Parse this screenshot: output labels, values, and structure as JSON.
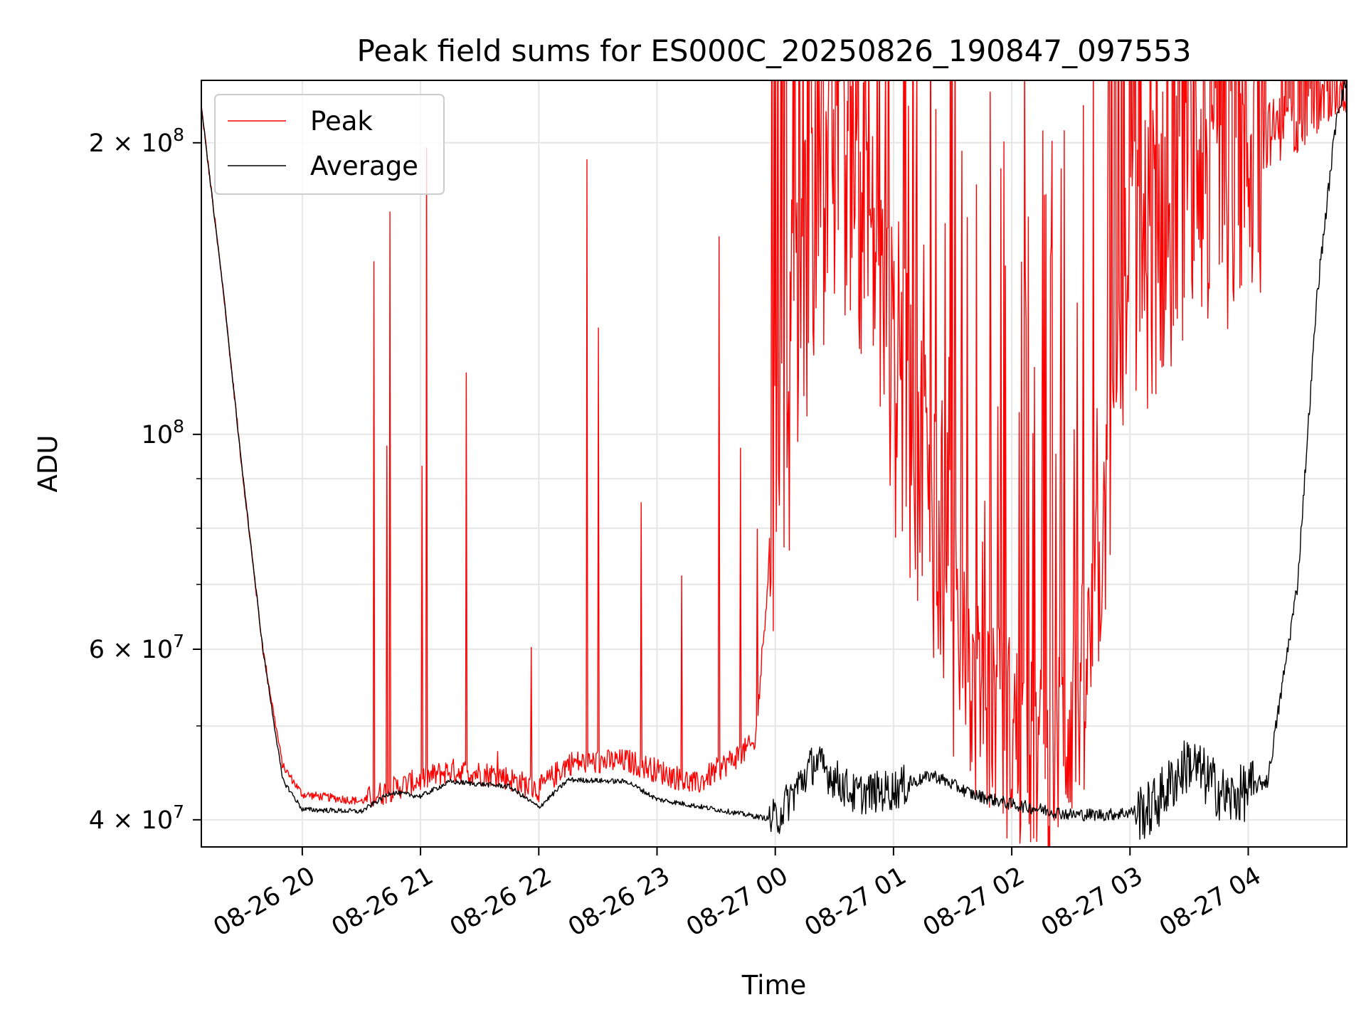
{
  "chart_data": {
    "type": "line",
    "title": "Peak field sums for ES000C_20250826_190847_097553",
    "xlabel": "Time",
    "ylabel": "ADU",
    "yscale": "log",
    "grid": true,
    "legend_position": "top-left",
    "xlim": [
      "2025-08-26 19:08:47",
      "2025-08-27 04:50:00"
    ],
    "ylim": [
      37500000,
      232000000
    ],
    "x_ticks": [
      {
        "value": "2025-08-26 20:00",
        "label": "08-26 20"
      },
      {
        "value": "2025-08-26 21:00",
        "label": "08-26 21"
      },
      {
        "value": "2025-08-26 22:00",
        "label": "08-26 22"
      },
      {
        "value": "2025-08-26 23:00",
        "label": "08-26 23"
      },
      {
        "value": "2025-08-27 00:00",
        "label": "08-27 00"
      },
      {
        "value": "2025-08-27 01:00",
        "label": "08-27 01"
      },
      {
        "value": "2025-08-27 02:00",
        "label": "08-27 02"
      },
      {
        "value": "2025-08-27 03:00",
        "label": "08-27 03"
      },
      {
        "value": "2025-08-27 04:00",
        "label": "08-27 04"
      }
    ],
    "y_ticks": [
      {
        "value": 40000000,
        "mantissa": "4",
        "exponent": "7"
      },
      {
        "value": 60000000,
        "mantissa": "6",
        "exponent": "7"
      },
      {
        "value": 100000000,
        "mantissa": "",
        "exponent": "8"
      },
      {
        "value": 200000000,
        "mantissa": "2",
        "exponent": "8"
      }
    ],
    "y_tick_base": "10",
    "y_tick_times": "×",
    "y_minor_ticks": [
      50000000,
      70000000,
      80000000,
      90000000
    ],
    "series": [
      {
        "name": "Peak",
        "color": "#ff0000",
        "points": [
          [
            "2025-08-26 19:08:47",
            218000000
          ],
          [
            "2025-08-26 19:20",
            140000000
          ],
          [
            "2025-08-26 19:30",
            90000000
          ],
          [
            "2025-08-26 19:40",
            60000000
          ],
          [
            "2025-08-26 19:50",
            45500000
          ],
          [
            "2025-08-26 20:00",
            42500000
          ],
          [
            "2025-08-26 20:30",
            41800000
          ],
          [
            "2025-08-26 20:45",
            43000000
          ],
          [
            "2025-08-26 21:00",
            44000000
          ],
          [
            "2025-08-26 21:15",
            45000000
          ],
          [
            "2025-08-26 21:40",
            44500000
          ],
          [
            "2025-08-26 22:00",
            43000000
          ],
          [
            "2025-08-26 22:15",
            45800000
          ],
          [
            "2025-08-26 22:45",
            46000000
          ],
          [
            "2025-08-26 23:00",
            45000000
          ],
          [
            "2025-08-26 23:20",
            43500000
          ],
          [
            "2025-08-26 23:50",
            48000000
          ],
          [
            "2025-08-27 00:00",
            90000000
          ],
          [
            "2025-08-27 00:20",
            180000000
          ],
          [
            "2025-08-27 00:40",
            200000000
          ],
          [
            "2025-08-27 01:00",
            120000000
          ],
          [
            "2025-08-27 01:20",
            90000000
          ],
          [
            "2025-08-27 01:40",
            55000000
          ],
          [
            "2025-08-27 02:00",
            50000000
          ],
          [
            "2025-08-27 02:20",
            45000000
          ],
          [
            "2025-08-27 02:40",
            60000000
          ],
          [
            "2025-08-27 03:00",
            150000000
          ],
          [
            "2025-08-27 03:30",
            190000000
          ],
          [
            "2025-08-27 04:00",
            200000000
          ],
          [
            "2025-08-27 04:30",
            215000000
          ],
          [
            "2025-08-27 04:50",
            232000000
          ]
        ]
      },
      {
        "name": "Average",
        "color": "#000000",
        "points": [
          [
            "2025-08-26 19:08:47",
            218000000
          ],
          [
            "2025-08-26 19:20",
            140000000
          ],
          [
            "2025-08-26 19:30",
            90000000
          ],
          [
            "2025-08-26 19:40",
            60000000
          ],
          [
            "2025-08-26 19:50",
            44000000
          ],
          [
            "2025-08-26 20:00",
            41000000
          ],
          [
            "2025-08-26 20:30",
            40800000
          ],
          [
            "2025-08-26 20:45",
            42700000
          ],
          [
            "2025-08-26 21:00",
            42300000
          ],
          [
            "2025-08-26 21:15",
            43800000
          ],
          [
            "2025-08-26 21:45",
            43300000
          ],
          [
            "2025-08-26 22:00",
            41200000
          ],
          [
            "2025-08-26 22:15",
            44000000
          ],
          [
            "2025-08-26 22:45",
            43800000
          ],
          [
            "2025-08-26 23:00",
            42000000
          ],
          [
            "2025-08-26 23:30",
            41000000
          ],
          [
            "2025-08-27 00:00",
            40000000
          ],
          [
            "2025-08-27 00:20",
            46000000
          ],
          [
            "2025-08-27 00:40",
            42500000
          ],
          [
            "2025-08-27 01:00",
            43000000
          ],
          [
            "2025-08-27 01:20",
            44500000
          ],
          [
            "2025-08-27 01:40",
            42500000
          ],
          [
            "2025-08-27 02:00",
            41500000
          ],
          [
            "2025-08-27 02:30",
            40500000
          ],
          [
            "2025-08-27 02:50",
            40500000
          ],
          [
            "2025-08-27 03:10",
            41000000
          ],
          [
            "2025-08-27 03:30",
            46000000
          ],
          [
            "2025-08-27 03:50",
            42000000
          ],
          [
            "2025-08-27 04:10",
            44000000
          ],
          [
            "2025-08-27 04:25",
            70000000
          ],
          [
            "2025-08-27 04:35",
            140000000
          ],
          [
            "2025-08-27 04:45",
            215000000
          ],
          [
            "2025-08-27 04:50",
            232000000
          ]
        ]
      }
    ]
  }
}
